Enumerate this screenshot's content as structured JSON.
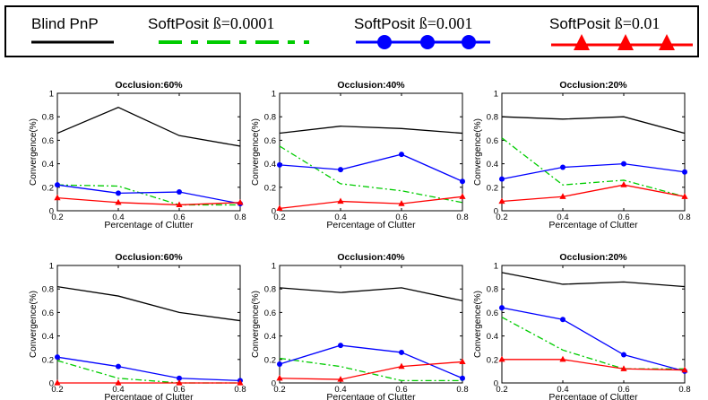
{
  "legend": [
    {
      "name": "Blind PnP",
      "name_parts": [
        "Blind PnP",
        ""
      ],
      "color": "#000000",
      "style": "solid",
      "marker": "none"
    },
    {
      "name": "SoftPosit ß=0.0001",
      "name_parts": [
        "SoftPosit ",
        "ß=0.0001"
      ],
      "color": "#00cc00",
      "style": "dash-dot",
      "marker": "none"
    },
    {
      "name": "SoftPosit ß=0.001",
      "name_parts": [
        "SoftPosit ",
        "ß=0.001"
      ],
      "color": "#0000ff",
      "style": "solid",
      "marker": "circle"
    },
    {
      "name": "SoftPosit ß=0.01",
      "name_parts": [
        "SoftPosit ",
        "ß=0.01"
      ],
      "color": "#ff0000",
      "style": "solid",
      "marker": "triangle"
    }
  ],
  "chart_data": [
    {
      "type": "line",
      "title": "Occlusion:60%",
      "xlabel": "Percentage of Clutter",
      "ylabel": "Convergence(%)",
      "x": [
        0.2,
        0.4,
        0.6,
        0.8
      ],
      "xlim": [
        0.2,
        0.8
      ],
      "ylim": [
        0,
        1
      ],
      "xticks": [
        "0.2",
        "0.4",
        "0.6",
        "0.8"
      ],
      "yticks": [
        "0",
        "0.2",
        "0.4",
        "0.6",
        "0.8",
        "1"
      ],
      "series": [
        {
          "name": "Blind PnP",
          "values": [
            0.66,
            0.88,
            0.64,
            0.55
          ]
        },
        {
          "name": "SoftPosit ß=0.0001",
          "values": [
            0.22,
            0.21,
            0.05,
            0.05
          ]
        },
        {
          "name": "SoftPosit ß=0.001",
          "values": [
            0.22,
            0.15,
            0.16,
            0.06
          ]
        },
        {
          "name": "SoftPosit ß=0.01",
          "values": [
            0.11,
            0.07,
            0.05,
            0.07
          ]
        }
      ]
    },
    {
      "type": "line",
      "title": "Occlusion:40%",
      "xlabel": "Percentage of Clutter",
      "ylabel": "Convergence(%)",
      "x": [
        0.2,
        0.4,
        0.6,
        0.8
      ],
      "xlim": [
        0.2,
        0.8
      ],
      "ylim": [
        0,
        1
      ],
      "xticks": [
        "0.2",
        "0.4",
        "0.6",
        "0.8"
      ],
      "yticks": [
        "0",
        "0.2",
        "0.4",
        "0.6",
        "0.8",
        "1"
      ],
      "series": [
        {
          "name": "Blind PnP",
          "values": [
            0.66,
            0.72,
            0.7,
            0.66
          ]
        },
        {
          "name": "SoftPosit ß=0.0001",
          "values": [
            0.55,
            0.23,
            0.17,
            0.07
          ]
        },
        {
          "name": "SoftPosit ß=0.001",
          "values": [
            0.39,
            0.35,
            0.48,
            0.25
          ]
        },
        {
          "name": "SoftPosit ß=0.01",
          "values": [
            0.02,
            0.08,
            0.06,
            0.12
          ]
        }
      ]
    },
    {
      "type": "line",
      "title": "Occlusion:20%",
      "xlabel": "Percentage of Clutter",
      "ylabel": "Convergence(%)",
      "x": [
        0.2,
        0.4,
        0.6,
        0.8
      ],
      "xlim": [
        0.2,
        0.8
      ],
      "ylim": [
        0,
        1
      ],
      "xticks": [
        "0.2",
        "0.4",
        "0.6",
        "0.8"
      ],
      "yticks": [
        "0",
        "0.2",
        "0.4",
        "0.6",
        "0.8",
        "1"
      ],
      "series": [
        {
          "name": "Blind PnP",
          "values": [
            0.8,
            0.78,
            0.8,
            0.66
          ]
        },
        {
          "name": "SoftPosit ß=0.0001",
          "values": [
            0.62,
            0.22,
            0.26,
            0.12
          ]
        },
        {
          "name": "SoftPosit ß=0.001",
          "values": [
            0.27,
            0.37,
            0.4,
            0.33
          ]
        },
        {
          "name": "SoftPosit ß=0.01",
          "values": [
            0.08,
            0.12,
            0.22,
            0.12
          ]
        }
      ]
    },
    {
      "type": "line",
      "title": "Occlusion:60%",
      "xlabel": "Percentage of Clutter",
      "ylabel": "Convergence(%)",
      "x": [
        0.2,
        0.4,
        0.6,
        0.8
      ],
      "xlim": [
        0.2,
        0.8
      ],
      "ylim": [
        0,
        1
      ],
      "xticks": [
        "0.2",
        "0.4",
        "0.6",
        "0.8"
      ],
      "yticks": [
        "0",
        "0.2",
        "0.4",
        "0.6",
        "0.8",
        "1"
      ],
      "series": [
        {
          "name": "Blind PnP",
          "values": [
            0.82,
            0.74,
            0.6,
            0.53
          ]
        },
        {
          "name": "SoftPosit ß=0.0001",
          "values": [
            0.19,
            0.04,
            0.0,
            0.0
          ]
        },
        {
          "name": "SoftPosit ß=0.001",
          "values": [
            0.22,
            0.14,
            0.04,
            0.02
          ]
        },
        {
          "name": "SoftPosit ß=0.01",
          "values": [
            0.0,
            0.0,
            0.0,
            0.0
          ]
        }
      ]
    },
    {
      "type": "line",
      "title": "Occlusion:40%",
      "xlabel": "Percentage of Clutter",
      "ylabel": "Convergence(%)",
      "x": [
        0.2,
        0.4,
        0.6,
        0.8
      ],
      "xlim": [
        0.2,
        0.8
      ],
      "ylim": [
        0,
        1
      ],
      "xticks": [
        "0.2",
        "0.4",
        "0.6",
        "0.8"
      ],
      "yticks": [
        "0",
        "0.2",
        "0.4",
        "0.6",
        "0.8",
        "1"
      ],
      "series": [
        {
          "name": "Blind PnP",
          "values": [
            0.81,
            0.77,
            0.81,
            0.7
          ]
        },
        {
          "name": "SoftPosit ß=0.0001",
          "values": [
            0.21,
            0.14,
            0.02,
            0.02
          ]
        },
        {
          "name": "SoftPosit ß=0.001",
          "values": [
            0.16,
            0.32,
            0.26,
            0.04
          ]
        },
        {
          "name": "SoftPosit ß=0.01",
          "values": [
            0.04,
            0.03,
            0.14,
            0.18
          ]
        }
      ]
    },
    {
      "type": "line",
      "title": "Occlusion:20%",
      "xlabel": "Percentage of Clutter",
      "ylabel": "Convergence(%)",
      "x": [
        0.2,
        0.4,
        0.6,
        0.8
      ],
      "xlim": [
        0.2,
        0.8
      ],
      "ylim": [
        0,
        1
      ],
      "xticks": [
        "0.2",
        "0.4",
        "0.6",
        "0.8"
      ],
      "yticks": [
        "0",
        "0.2",
        "0.4",
        "0.6",
        "0.8",
        "1"
      ],
      "series": [
        {
          "name": "Blind PnP",
          "values": [
            0.94,
            0.84,
            0.86,
            0.82
          ]
        },
        {
          "name": "SoftPosit ß=0.0001",
          "values": [
            0.56,
            0.28,
            0.12,
            0.12
          ]
        },
        {
          "name": "SoftPosit ß=0.001",
          "values": [
            0.64,
            0.54,
            0.24,
            0.1
          ]
        },
        {
          "name": "SoftPosit ß=0.01",
          "values": [
            0.2,
            0.2,
            0.12,
            0.11
          ]
        }
      ]
    }
  ]
}
